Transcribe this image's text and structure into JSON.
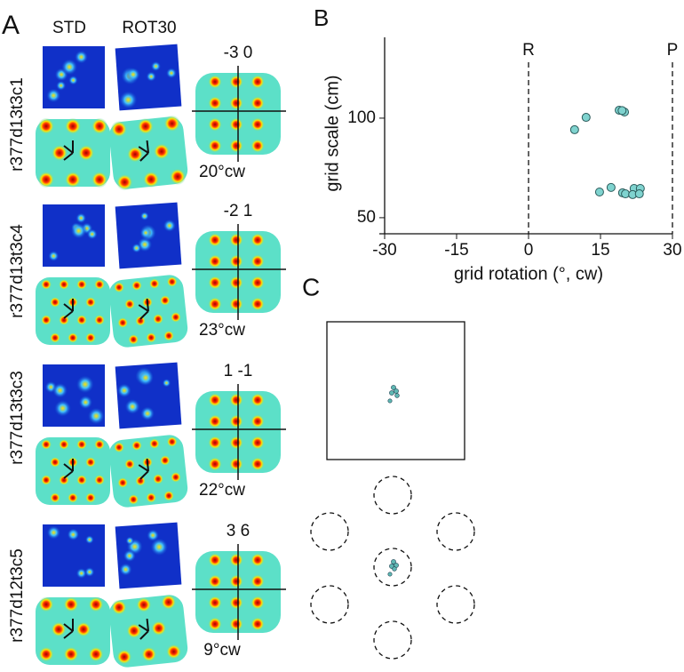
{
  "panel_a": {
    "label": "A",
    "col_std": "STD",
    "col_rot": "ROT30",
    "rows": [
      {
        "cell": "r377d13t3c1",
        "shift": "-3  0",
        "rotation": "20°cw"
      },
      {
        "cell": "r377d13t3c4",
        "shift": "-2  1",
        "rotation": "23°cw"
      },
      {
        "cell": "r377d13t3c3",
        "shift": "1  -1",
        "rotation": "22°cw"
      },
      {
        "cell": "r377d12t3c5",
        "shift": "3  6",
        "rotation": "9°cw"
      }
    ]
  },
  "chart_data": {
    "type": "scatter",
    "label": "B",
    "x_label": "grid rotation (°, cw)",
    "y_label": "grid scale (cm)",
    "xlim": [
      -30,
      30
    ],
    "xticks": [
      -30,
      -15,
      0,
      15,
      30
    ],
    "ylim": [
      44.6,
      140.6
    ],
    "yticks": [
      50,
      100
    ],
    "color": "#7fd3cf",
    "annotations": [
      {
        "x": 0,
        "text": "R"
      },
      {
        "x": 30,
        "text": "P"
      }
    ],
    "x": [
      9.6,
      12.0,
      18.9,
      20.0,
      19.5,
      14.8,
      17.2,
      19.6,
      20.2,
      22.0,
      23.3,
      21.7,
      23.1
    ],
    "values": [
      94.2,
      100.4,
      104.0,
      103.1,
      103.8,
      62.9,
      65.2,
      62.5,
      62.0,
      64.7,
      64.7,
      61.6,
      62.0
    ]
  },
  "panel_c": {
    "label": "C"
  }
}
